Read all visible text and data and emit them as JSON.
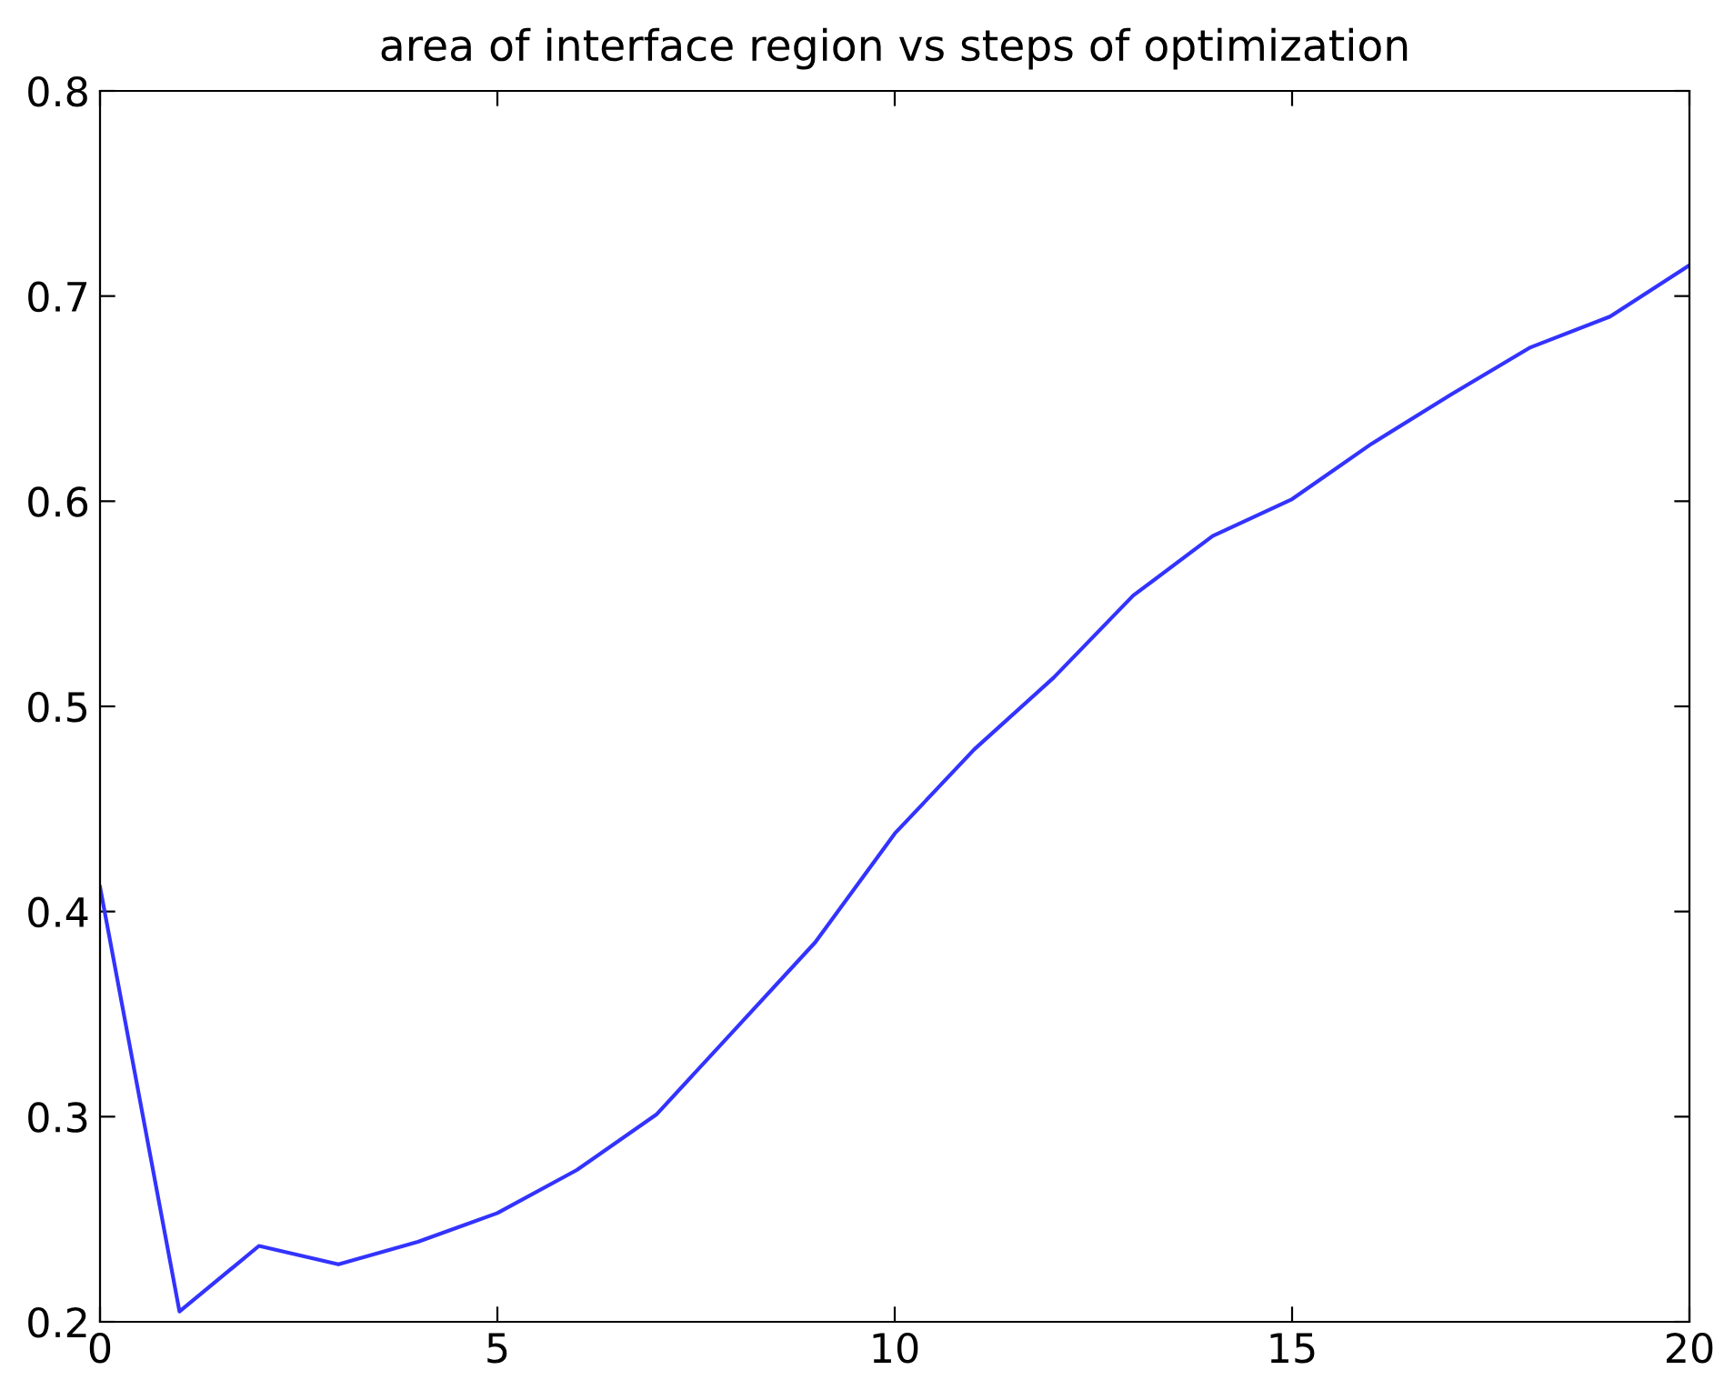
{
  "chart_data": {
    "type": "line",
    "title": "area of interface region vs steps of optimization",
    "x": [
      0,
      1,
      2,
      3,
      4,
      5,
      6,
      7,
      8,
      9,
      10,
      11,
      12,
      13,
      14,
      15,
      16,
      17,
      18,
      19,
      20
    ],
    "series": [
      {
        "color": "#3333ff",
        "values": [
          0.412,
          0.205,
          0.237,
          0.228,
          0.239,
          0.253,
          0.274,
          0.301,
          0.343,
          0.385,
          0.438,
          0.479,
          0.514,
          0.554,
          0.583,
          0.601,
          0.628,
          0.652,
          0.675,
          0.69,
          0.715
        ]
      }
    ],
    "xlim": [
      0,
      20
    ],
    "xticks": [
      0,
      5,
      10,
      15,
      20
    ],
    "ylim": [
      0.2,
      0.8
    ],
    "yticks": [
      0.2,
      0.3,
      0.4,
      0.5,
      0.6,
      0.7,
      0.8
    ],
    "grid": false,
    "legend": false,
    "marker": "none",
    "line_style": "solid"
  }
}
